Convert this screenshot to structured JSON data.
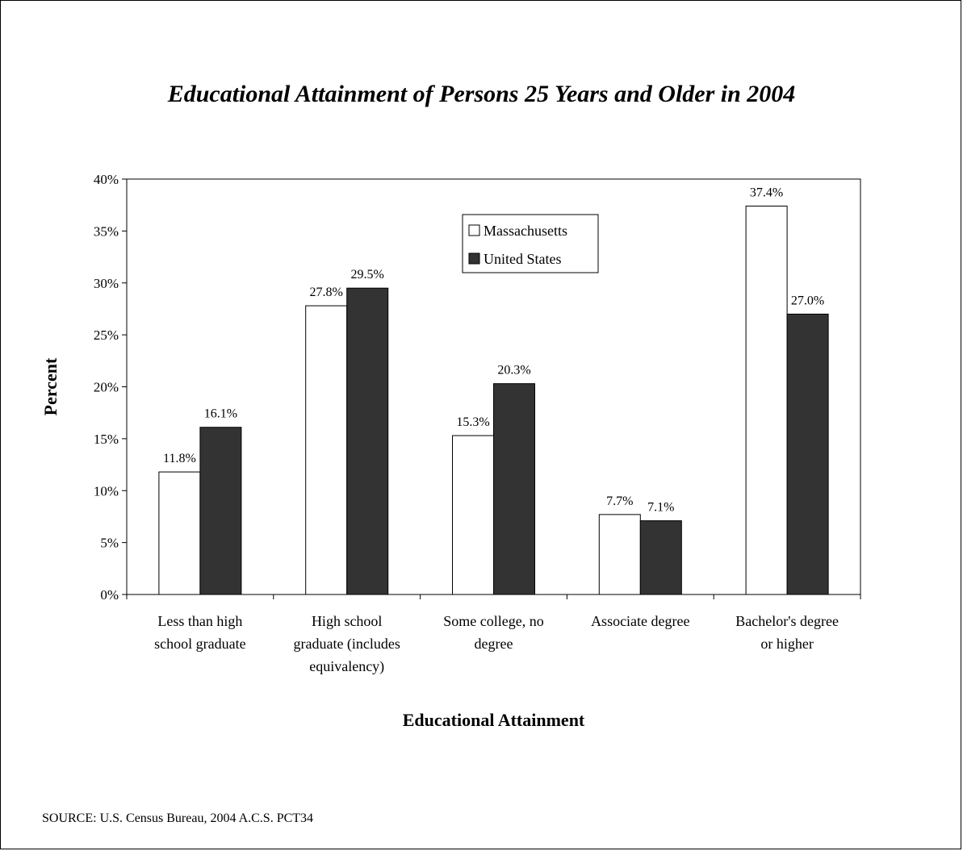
{
  "chart_data": {
    "type": "bar",
    "title": "Educational Attainment of Persons 25 Years and Older in 2004",
    "xlabel": "Educational Attainment",
    "ylabel": "Percent",
    "ylim": [
      0,
      40
    ],
    "yticks": [
      0,
      5,
      10,
      15,
      20,
      25,
      30,
      35,
      40
    ],
    "ytick_labels": [
      "0%",
      "5%",
      "10%",
      "15%",
      "20%",
      "25%",
      "30%",
      "35%",
      "40%"
    ],
    "categories": [
      [
        "Less than high",
        "school graduate"
      ],
      [
        "High school",
        "graduate (includes",
        "equivalency)"
      ],
      [
        "Some college, no",
        "degree"
      ],
      [
        "Associate degree"
      ],
      [
        "Bachelor's degree",
        "or higher"
      ]
    ],
    "series": [
      {
        "name": "Massachusetts",
        "color": "#ffffff",
        "values": [
          11.8,
          27.8,
          15.3,
          7.7,
          37.4
        ],
        "labels": [
          "11.8%",
          "27.8%",
          "15.3%",
          "7.7%",
          "37.4%"
        ]
      },
      {
        "name": "United States",
        "color": "#333333",
        "values": [
          16.1,
          29.5,
          20.3,
          7.1,
          27.0
        ],
        "labels": [
          "16.1%",
          "29.5%",
          "20.3%",
          "7.1%",
          "27.0%"
        ]
      }
    ],
    "legend_position": "top-center",
    "grid": false
  },
  "source": "SOURCE: U.S. Census Bureau, 2004 A.C.S. PCT34"
}
